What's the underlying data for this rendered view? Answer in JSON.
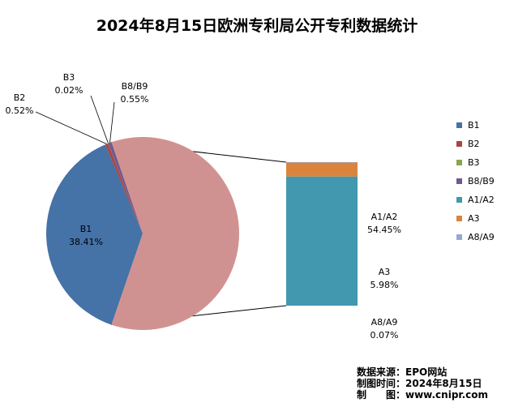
{
  "chart_data": {
    "type": "pie",
    "title": "2024年8月15日欧洲专利局公开专利数据统计",
    "slices": [
      {
        "name": "B1",
        "value": 38.41,
        "label": "38.41%",
        "color": "#4572a7"
      },
      {
        "name": "B2",
        "value": 0.52,
        "label": "0.52%",
        "color": "#aa4643"
      },
      {
        "name": "B3",
        "value": 0.02,
        "label": "0.02%",
        "color": "#89a54e"
      },
      {
        "name": "B8/B9",
        "value": 0.55,
        "label": "0.55%",
        "color": "#71588f"
      }
    ],
    "bar_breakdown": [
      {
        "name": "A1/A2",
        "value": 54.45,
        "label": "54.45%",
        "color": "#4198af"
      },
      {
        "name": "A3",
        "value": 5.98,
        "label": "5.98%",
        "color": "#db843d"
      },
      {
        "name": "A8/A9",
        "value": 0.07,
        "label": "0.07%",
        "color": "#93a9cf"
      }
    ],
    "other_slice_color": "#d09291",
    "legend": [
      "B1",
      "B2",
      "B3",
      "B8/B9",
      "A1/A2",
      "A3",
      "A8/A9"
    ],
    "legend_position": "right"
  },
  "footer": {
    "source": "数据来源：EPO网站",
    "date": "制图时间：2024年8月15日",
    "maker": "制　　图：www.cnipr.com"
  }
}
